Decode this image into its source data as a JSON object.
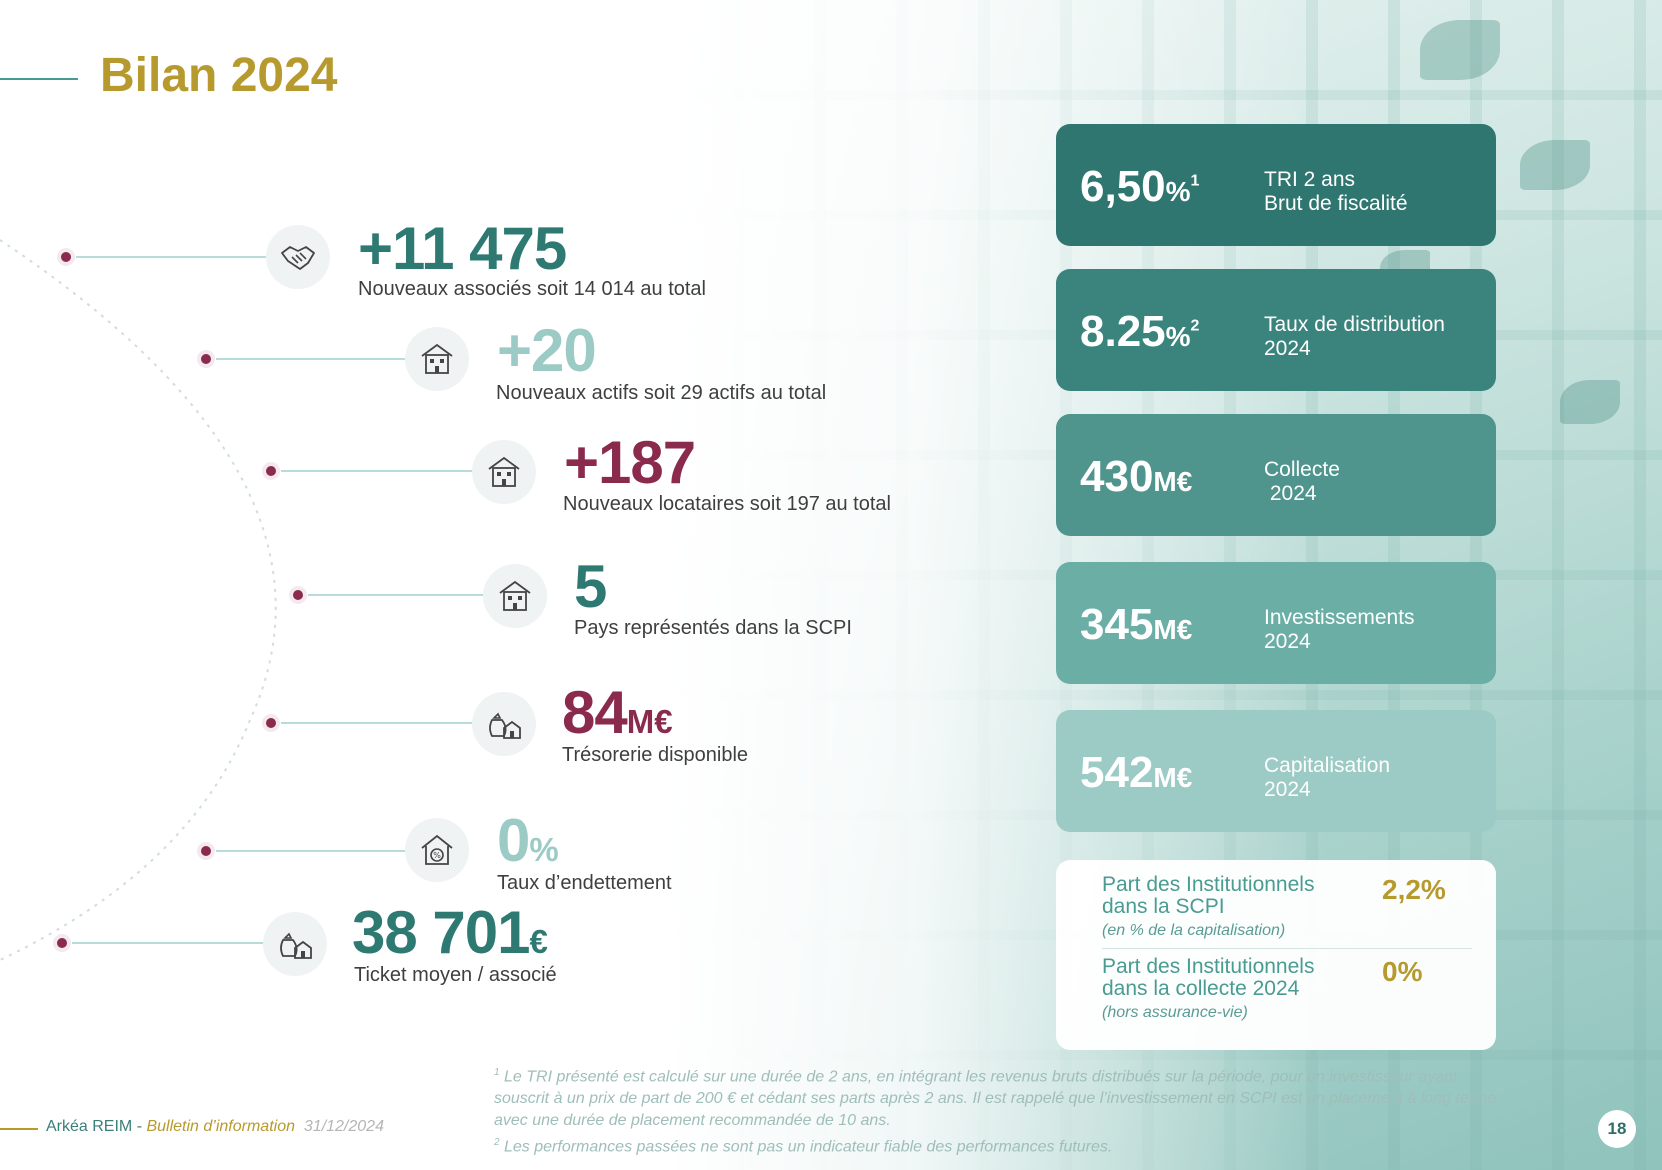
{
  "title": "Bilan 2024",
  "stats": [
    {
      "value": "+11 475",
      "unit": "",
      "description": "Nouveaux associés soit 14 014 au total",
      "color": "#2e7a73",
      "icon": "handshake-icon"
    },
    {
      "value": "+20",
      "unit": "",
      "description": "Nouveaux actifs soit 29 actifs au total",
      "color": "#9ccbc6",
      "icon": "building-icon"
    },
    {
      "value": "+187",
      "unit": "",
      "description": "Nouveaux locataires soit 197 au total",
      "color": "#8a2a4c",
      "icon": "building-icon"
    },
    {
      "value": "5",
      "unit": "",
      "description": "Pays représentés dans la SCPI",
      "color": "#2e7a73",
      "icon": "building-icon"
    },
    {
      "value": "84",
      "unit": "M€",
      "description": "Trésorerie disponible",
      "color": "#8a2a4c",
      "icon": "money-bag-house-icon"
    },
    {
      "value": "0",
      "unit": "%",
      "description": "Taux d’endettement",
      "color": "#9ccbc6",
      "icon": "house-percent-icon"
    },
    {
      "value": "38 701",
      "unit": "€",
      "description": "Ticket moyen / associé",
      "color": "#2e7a73",
      "icon": "money-bag-house-icon"
    }
  ],
  "cards": [
    {
      "value": "6,50",
      "unit": "%",
      "sup": "1",
      "label_1": "TRI 2 ans",
      "label_2": "Brut de fiscalité",
      "color": "#2f7670"
    },
    {
      "value": "8.25",
      "unit": "%",
      "sup": "2",
      "label_1": "Taux de distribution",
      "label_2": "2024",
      "color": "#3a847d"
    },
    {
      "value": "430",
      "unit": "M€",
      "sup": "",
      "label_1": "Collecte",
      "label_2": " 2024",
      "color": "#4f948d"
    },
    {
      "value": "345",
      "unit": "M€",
      "sup": "",
      "label_1": "Investissements",
      "label_2": "2024",
      "color": "#6aaea6"
    },
    {
      "value": "542",
      "unit": "M€",
      "sup": "",
      "label_1": "Capitalisation",
      "label_2": "2024",
      "color": "#9ccac4"
    }
  ],
  "institutional": [
    {
      "title": "Part des Institutionnels dans la SCPI",
      "note": "(en % de la capitalisation)",
      "value": "2,2%"
    },
    {
      "title": "Part des Institutionnels dans la collecte 2024",
      "note": "(hors assurance-vie)",
      "value": "0%"
    }
  ],
  "footnotes": {
    "note_1_mark": "1",
    "note_1": " Le TRI présenté est calculé sur une durée de 2 ans, en intégrant les revenus bruts distribués sur la période, pour un investisseur ayant souscrit à un prix de part de 200 € et cédant ses parts après 2 ans. Il est rappelé que l’investissement en SCPI est un placement à long terme, avec une durée de placement recommandée de 10 ans.",
    "note_2_mark": "2",
    "note_2": " Les performances passées ne sont pas un indicateur fiable des performances futures."
  },
  "footer": {
    "brand": "Arkéa REIM",
    "separator": " - ",
    "document": "Bulletin d’information",
    "date": "31/12/2024",
    "page": "18"
  }
}
